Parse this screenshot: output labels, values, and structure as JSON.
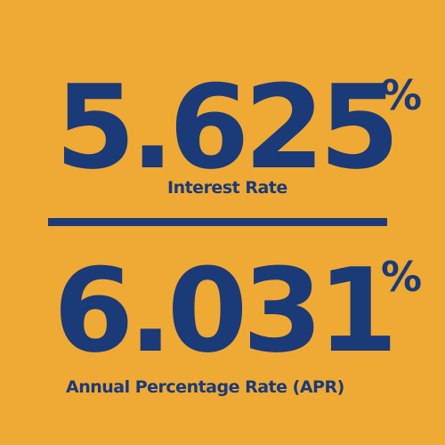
{
  "interest_rate": {
    "value": "5.625",
    "symbol": "%",
    "label": "Interest Rate"
  },
  "apr": {
    "value": "6.031",
    "symbol": "%",
    "label": "Annual Percentage Rate (APR)"
  },
  "colors": {
    "background": "#EFA935",
    "text": "#1B3A78"
  }
}
